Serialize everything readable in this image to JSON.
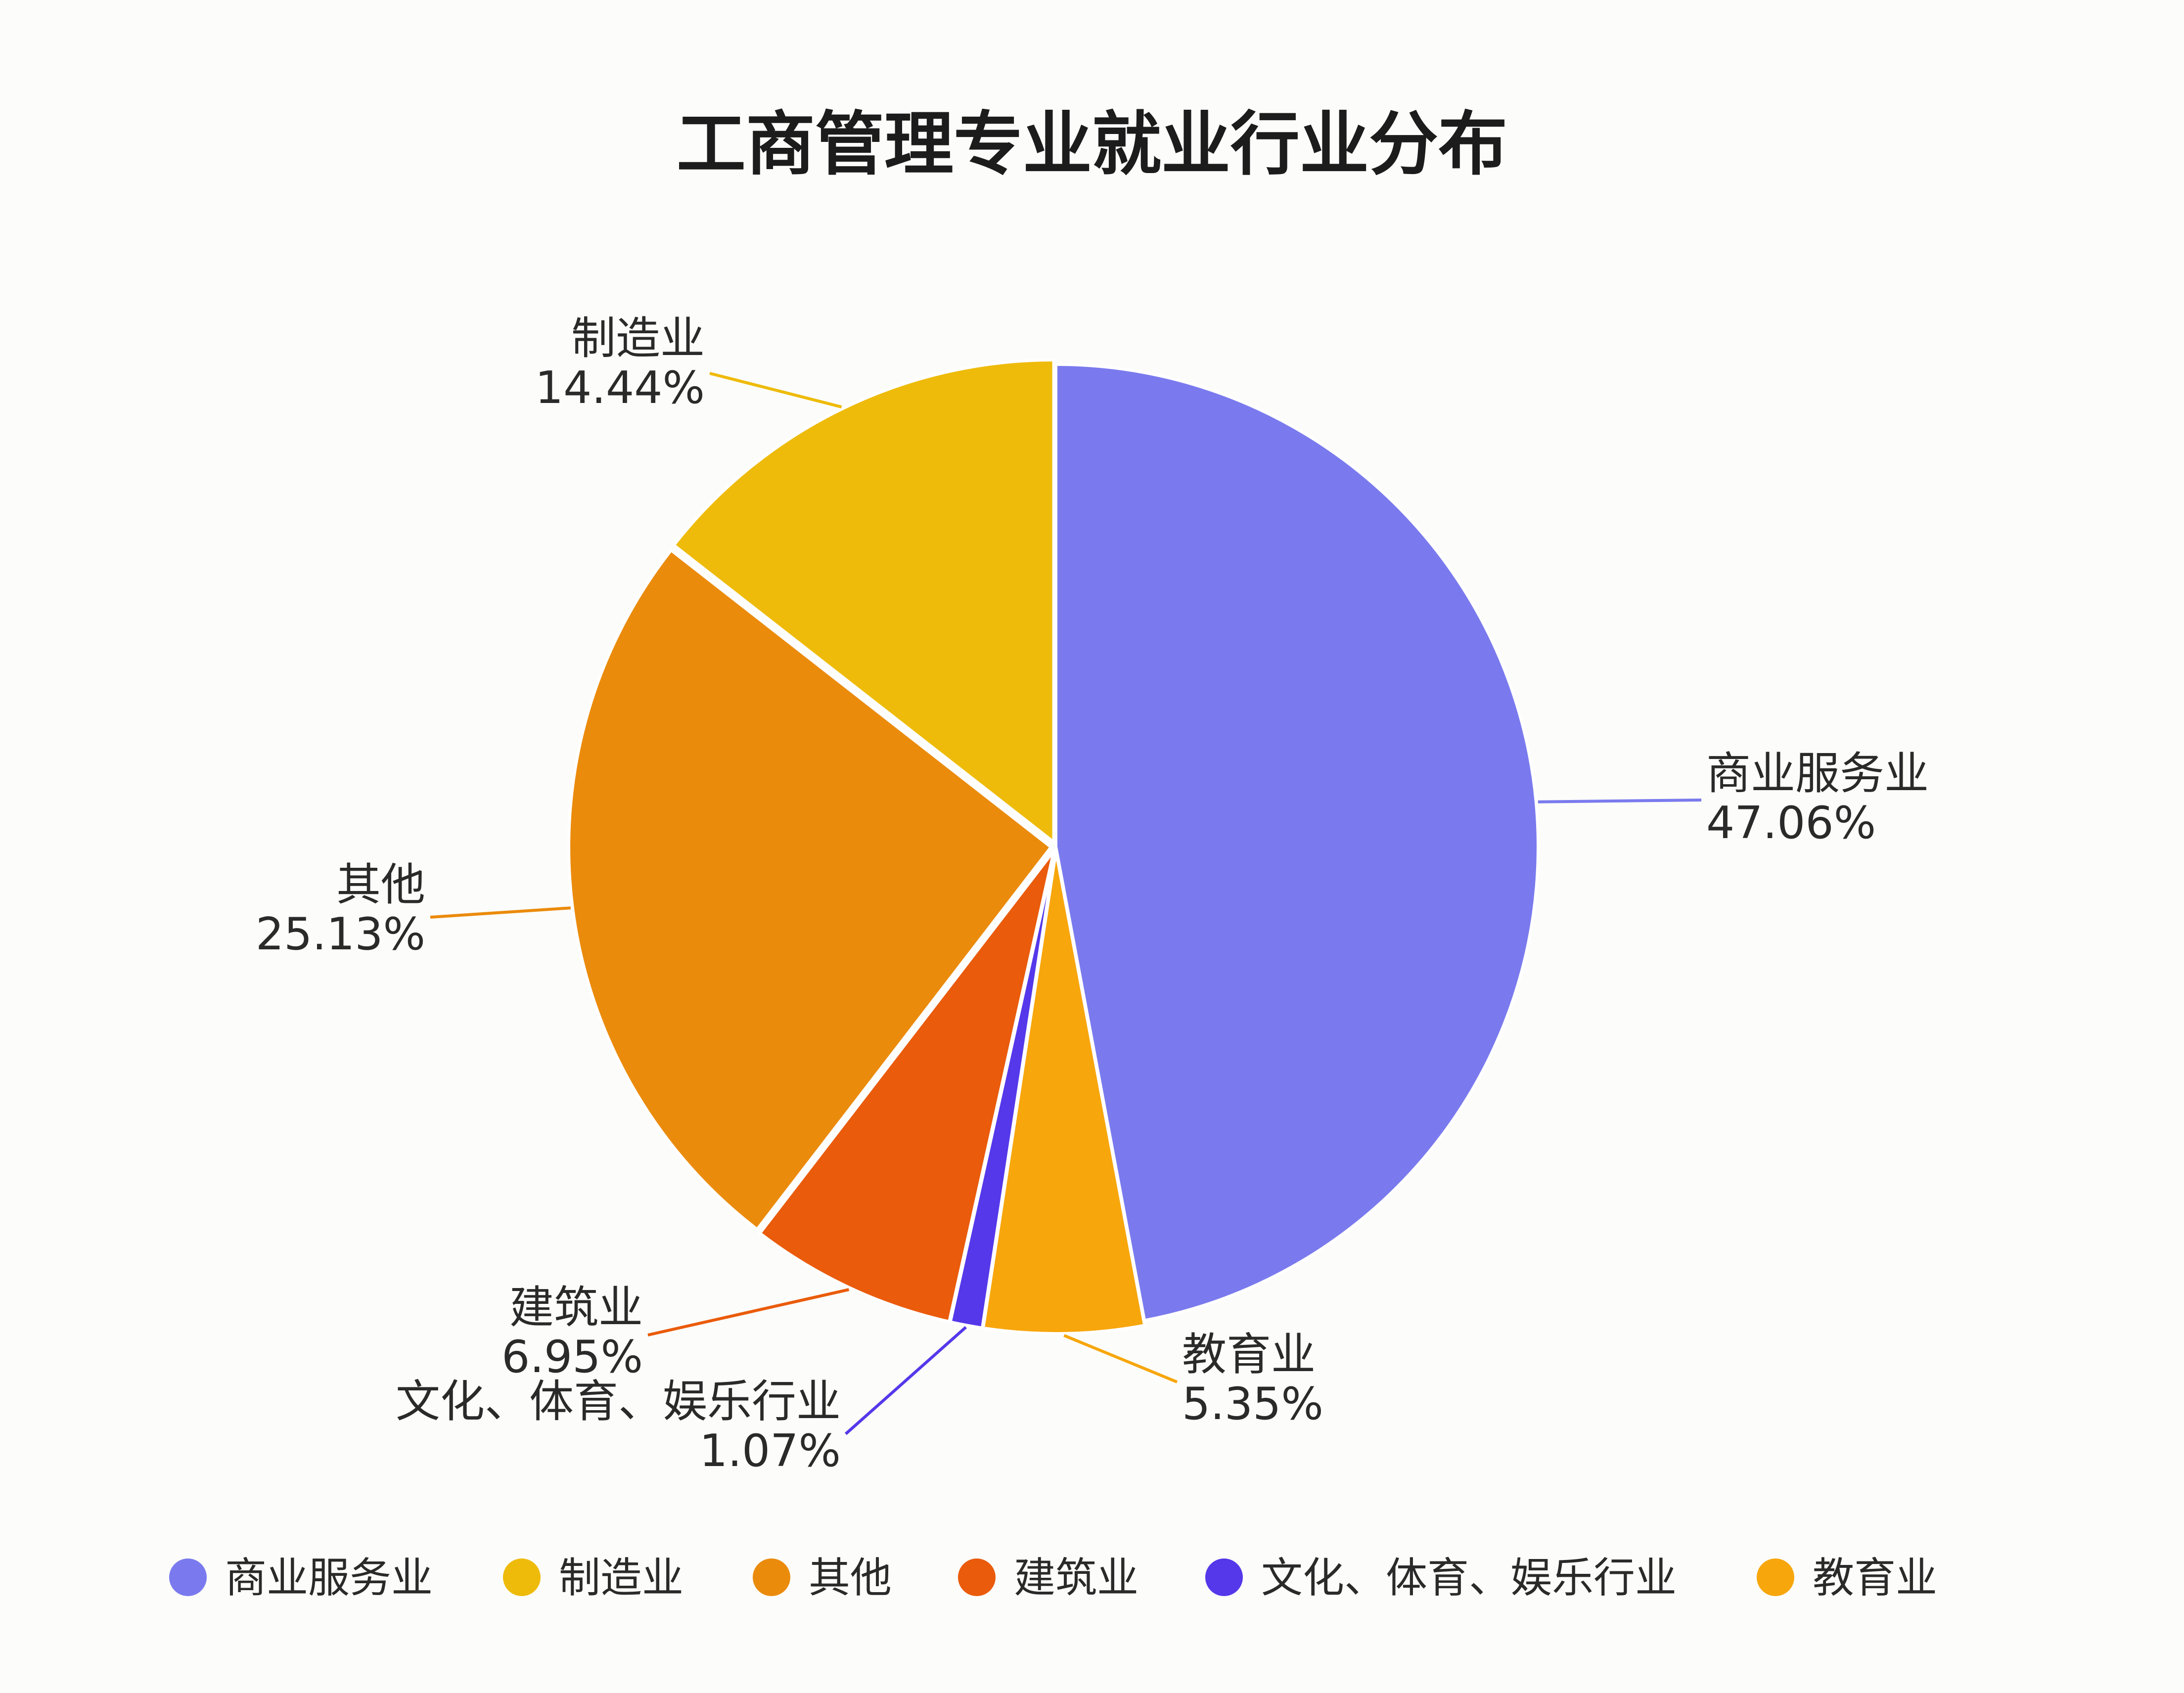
{
  "chart_data": {
    "type": "pie",
    "title": "工商管理专业就业行业分布",
    "categories": [
      "商业服务业",
      "制造业",
      "其他",
      "建筑业",
      "文化、体育、娱乐行业",
      "教育业"
    ],
    "values": [
      47.06,
      14.44,
      25.13,
      6.95,
      1.07,
      5.35
    ],
    "value_labels": [
      "47.06%",
      "14.44%",
      "25.13%",
      "6.95%",
      "1.07%",
      "5.35%"
    ],
    "unit": "%",
    "slice_order": [
      "商业服务业",
      "教育业",
      "文化、体育、娱乐行业",
      "建筑业",
      "其他",
      "制造业"
    ],
    "direction": "clockwise from top",
    "label_layout": "outside with leader lines",
    "legend_position": "bottom",
    "colors": {
      "商业服务业": "#7a7aee",
      "制造业": "#eebb0a",
      "其他": "#eb8b0c",
      "建筑业": "#ea5b0b",
      "文化、体育、娱乐行业": "#5538ea",
      "教育业": "#f7a60c"
    },
    "background_color": "#fcfcfa"
  }
}
